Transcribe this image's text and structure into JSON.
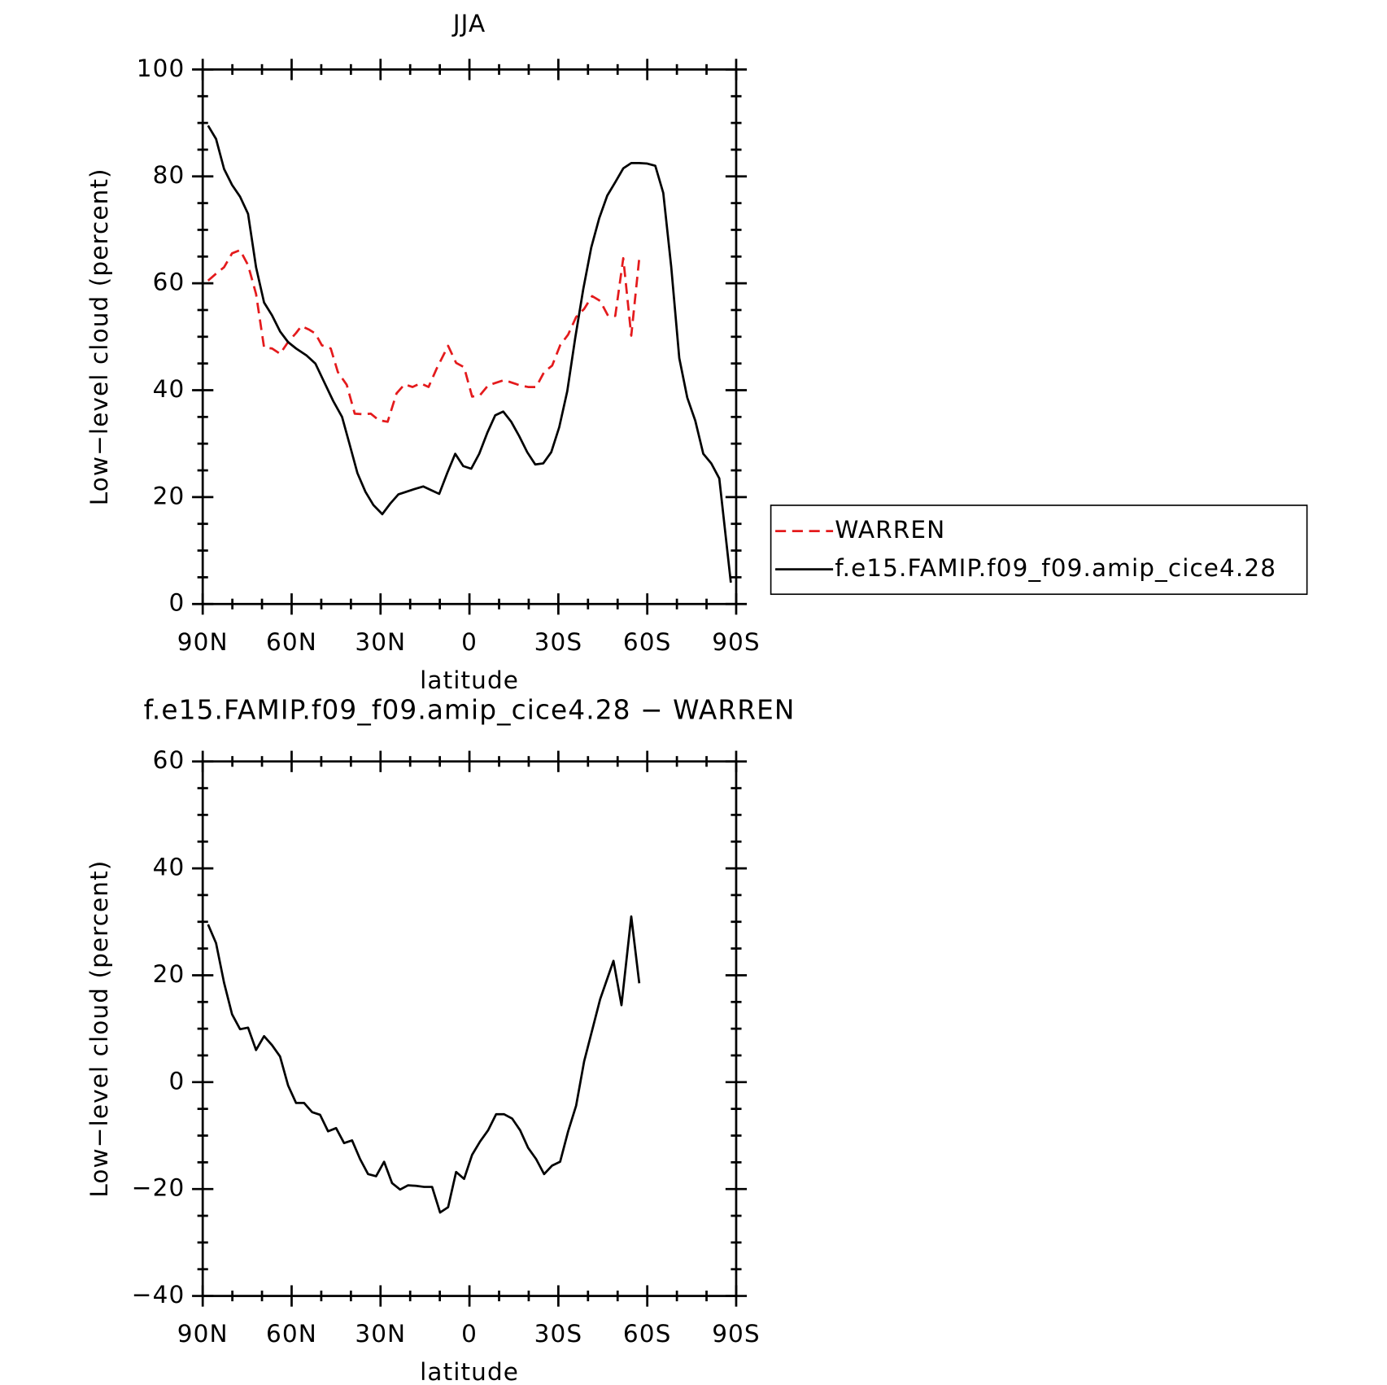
{
  "chart_data": [
    {
      "type": "line",
      "title": "JJA",
      "xlabel": "latitude",
      "ylabel": "Low−level cloud (percent)",
      "xlim": [
        90,
        -90
      ],
      "ylim": [
        0,
        100
      ],
      "xticks": [
        {
          "value": 90,
          "label": "90N"
        },
        {
          "value": 60,
          "label": "60N"
        },
        {
          "value": 30,
          "label": "30N"
        },
        0,
        {
          "value": -30,
          "label": "30S"
        },
        {
          "value": -60,
          "label": "60S"
        },
        {
          "value": -90,
          "label": "90S"
        }
      ],
      "yticks": [
        0,
        20,
        40,
        60,
        80,
        100
      ],
      "legend": "right",
      "series": [
        {
          "name": "WARREN",
          "color": "#e41a1c",
          "dashed": true,
          "x": [
            88.2,
            85.5,
            82.8,
            80.1,
            77.4,
            74.7,
            72,
            69.3,
            66.6,
            63.9,
            61.2,
            58.5,
            56.7,
            54,
            52,
            49.8,
            46.8,
            44.4,
            41.4,
            38.7,
            36,
            33.3,
            30.6,
            27.6,
            24.6,
            21.9,
            19.2,
            16.5,
            13.8,
            11.1,
            7.2,
            4.5,
            1.8,
            -0.9,
            -3.6,
            -6.3,
            -9,
            -11.7,
            -14.4,
            -17.1,
            -19.8,
            -22.5,
            -25.2,
            -27.9,
            -30.6,
            -33.3,
            -36,
            -38.7,
            -41.4,
            -44.1,
            -46.8,
            -49.2,
            -51.9,
            -54.6,
            -57.3
          ],
          "values": [
            60.5,
            61.8,
            63,
            65.6,
            66.2,
            63.4,
            58,
            48,
            47.8,
            46.8,
            49,
            50.7,
            52,
            51.3,
            50.6,
            48.4,
            47.8,
            43.4,
            41,
            35.6,
            35.5,
            35.6,
            34.4,
            34.1,
            39.4,
            41.1,
            40.6,
            41.3,
            40.6,
            44,
            48.3,
            45.1,
            44.3,
            38.8,
            39.1,
            40.9,
            41.4,
            41.9,
            41.4,
            40.9,
            40.6,
            40.6,
            43.4,
            44.6,
            48.4,
            50.4,
            53.7,
            55.2,
            57.6,
            56.7,
            53.9,
            53.9,
            64.7,
            50.2,
            64.7
          ]
        },
        {
          "name": "f.e15.FAMIP.f09_f09.amip_cice4.28",
          "color": "#000000",
          "dashed": false,
          "x": [
            88.2,
            85.5,
            82.8,
            80.1,
            77.4,
            74.7,
            72,
            69.3,
            66.6,
            63.9,
            61.2,
            58.5,
            55,
            52,
            49,
            46,
            43,
            40.5,
            37.8,
            35.1,
            32.4,
            29.4,
            26.7,
            24,
            21.3,
            18.6,
            15.6,
            12.9,
            10.2,
            7.5,
            4.8,
            2.1,
            -0.6,
            -3.3,
            -6,
            -8.7,
            -11.4,
            -14.1,
            -16.8,
            -19.5,
            -22.2,
            -24.9,
            -27.6,
            -30.3,
            -33,
            -35.7,
            -38.4,
            -41.1,
            -43.8,
            -46.5,
            -49.2,
            -51.9,
            -54.6,
            -57.3,
            -60,
            -62.7,
            -65.4,
            -68.1,
            -70.8,
            -73.5,
            -76.2,
            -78.9,
            -81.6,
            -84.3,
            -88.2
          ],
          "values": [
            89.5,
            87,
            81.4,
            78.4,
            76.2,
            73,
            63,
            56.4,
            54,
            51,
            49,
            47.8,
            46.5,
            45,
            41.5,
            38,
            35,
            30,
            24.5,
            21,
            18.5,
            16.8,
            18.8,
            20.5,
            21,
            21.5,
            22,
            21.3,
            20.6,
            24.5,
            28.1,
            25.8,
            25.3,
            28.1,
            32,
            35.3,
            36,
            34.1,
            31.4,
            28.4,
            26.1,
            26.3,
            28.4,
            33.1,
            39.8,
            49.8,
            58.9,
            66.7,
            72.2,
            76.4,
            78.9,
            81.5,
            82.5,
            82.5,
            82.4,
            82,
            76.9,
            63,
            46,
            38.6,
            34.3,
            28.1,
            26.3,
            23.5,
            4
          ]
        }
      ]
    },
    {
      "type": "line",
      "title": "f.e15.FAMIP.f09_f09.amip_cice4.28 − WARREN",
      "xlabel": "latitude",
      "ylabel": "Low−level cloud (percent)",
      "xlim": [
        90,
        -90
      ],
      "ylim": [
        -40,
        60
      ],
      "xticks": [
        {
          "value": 90,
          "label": "90N"
        },
        {
          "value": 60,
          "label": "60N"
        },
        {
          "value": 30,
          "label": "30N"
        },
        0,
        {
          "value": -30,
          "label": "30S"
        },
        {
          "value": -60,
          "label": "60S"
        },
        {
          "value": -90,
          "label": "90S"
        }
      ],
      "yticks": [
        {
          "value": -40,
          "label": "−40"
        },
        {
          "value": -20,
          "label": "−20"
        },
        0,
        20,
        40,
        60
      ],
      "series": [
        {
          "color": "#000000",
          "dashed": false,
          "x": [
            88.2,
            85.5,
            82.8,
            80.1,
            77.4,
            74.7,
            72,
            69.3,
            66.6,
            63.9,
            61.2,
            58.5,
            55.8,
            53.1,
            50.4,
            47.7,
            45,
            42.3,
            39.6,
            36.9,
            34.2,
            31.5,
            28.8,
            26.1,
            23.4,
            20.7,
            18,
            15.3,
            12.6,
            9.9,
            7.2,
            4.5,
            1.8,
            -0.9,
            -3.6,
            -6.3,
            -9,
            -11.7,
            -14.4,
            -17.1,
            -19.8,
            -22.5,
            -25.2,
            -27.9,
            -30.6,
            -33.3,
            -36,
            -38.7,
            -41.4,
            -44.1,
            -48.6,
            -51.3,
            -54.6,
            -57.3
          ],
          "values": [
            29.5,
            26,
            18.6,
            12.7,
            9.9,
            10.2,
            6,
            8.6,
            6.9,
            4.8,
            -0.6,
            -3.9,
            -3.9,
            -5.6,
            -6.1,
            -9.2,
            -8.6,
            -11.4,
            -10.9,
            -14.4,
            -17.2,
            -17.6,
            -14.9,
            -18.9,
            -20.1,
            -19.3,
            -19.4,
            -19.6,
            -19.6,
            -24.4,
            -23.4,
            -16.8,
            -18.1,
            -13.6,
            -11.1,
            -9,
            -6,
            -6,
            -6.8,
            -9,
            -12.3,
            -14.4,
            -17.2,
            -15.6,
            -14.9,
            -9.2,
            -4.4,
            3.9,
            9.7,
            15.5,
            22.7,
            14.4,
            31,
            18.5
          ]
        }
      ]
    }
  ]
}
